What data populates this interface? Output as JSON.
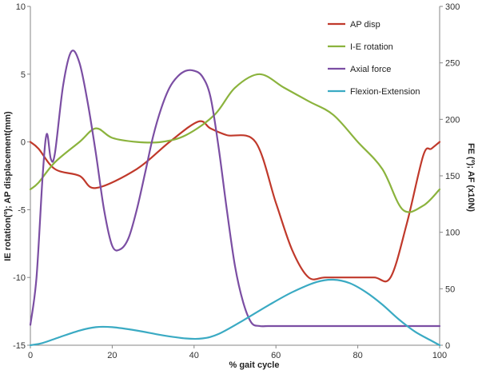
{
  "chart_data": {
    "type": "line",
    "title": "",
    "xlabel": "% gait cycle",
    "ylabel_left": "IE rotation(º); AP displacement(mm)",
    "ylabel_right": "FE (º); AF (x10N)",
    "xlim": [
      0,
      100
    ],
    "ylim_left": [
      -15,
      10
    ],
    "ylim_right": [
      0,
      300
    ],
    "x_ticks": [
      "0",
      "20",
      "40",
      "60",
      "80",
      "100"
    ],
    "y_left_ticks": [
      "-15",
      "-10",
      "-5",
      "0",
      "5",
      "10"
    ],
    "y_right_ticks": [
      "0",
      "50",
      "100",
      "150",
      "200",
      "250",
      "300"
    ],
    "grid": false,
    "legend_position": "top-right",
    "series": [
      {
        "name": "AP disp",
        "axis": "left",
        "color": "#c0392b",
        "x": [
          0,
          2,
          6,
          12,
          16,
          26,
          34,
          41,
          44,
          48,
          55,
          60,
          64,
          68,
          72,
          78,
          84,
          88,
          92,
          96,
          98,
          100
        ],
        "y": [
          0,
          -0.5,
          -2,
          -2.5,
          -3.4,
          -2,
          0,
          1.5,
          1,
          0.5,
          0,
          -4.5,
          -8,
          -10,
          -10,
          -10,
          -10,
          -10,
          -6,
          -1,
          -0.5,
          0
        ]
      },
      {
        "name": "I-E rotation",
        "axis": "left",
        "color": "#8bb33d",
        "x": [
          0,
          2,
          6,
          12,
          16,
          20,
          26,
          32,
          38,
          45,
          50,
          56,
          62,
          68,
          74,
          80,
          86,
          91,
          96,
          100
        ],
        "y": [
          -3.5,
          -3,
          -1.5,
          0,
          1,
          0.3,
          0,
          0,
          0.5,
          2,
          4,
          5,
          4,
          3,
          2,
          0,
          -2,
          -5,
          -4.7,
          -3.5
        ]
      },
      {
        "name": "Axial force",
        "axis": "right",
        "color": "#7b4ea3",
        "x": [
          0,
          1.5,
          3,
          4,
          5,
          6,
          8,
          10,
          12,
          14,
          16,
          18,
          20,
          22,
          24,
          26,
          28,
          30,
          32,
          34,
          36,
          38,
          40,
          42,
          44,
          46,
          48,
          50,
          52,
          54,
          56,
          58,
          60,
          70,
          80,
          90,
          100
        ],
        "y": [
          18,
          60,
          150,
          187,
          165,
          170,
          230,
          260,
          250,
          215,
          170,
          120,
          88,
          85,
          95,
          120,
          152,
          185,
          210,
          228,
          238,
          243,
          243,
          238,
          220,
          175,
          120,
          70,
          38,
          20,
          17,
          17,
          17,
          17,
          17,
          17,
          17
        ]
      },
      {
        "name": "Flexion-Extension",
        "axis": "right",
        "color": "#3aaac3",
        "x": [
          0,
          3,
          7,
          12,
          16,
          20,
          26,
          32,
          38,
          42,
          46,
          52,
          58,
          64,
          70,
          74,
          78,
          82,
          86,
          90,
          94,
          98,
          100
        ],
        "y": [
          0,
          2,
          7,
          13,
          16,
          16,
          13,
          9,
          6,
          6,
          10,
          22,
          35,
          47,
          56,
          58,
          55,
          47,
          36,
          23,
          12,
          4,
          0
        ]
      }
    ]
  }
}
